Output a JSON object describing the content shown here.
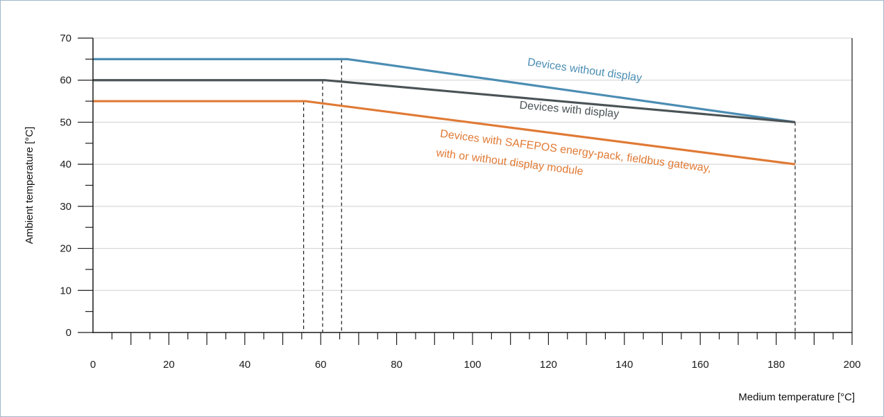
{
  "chart_data": {
    "type": "line",
    "title": "",
    "xlabel": "Medium temperature  [°C]",
    "ylabel": "Ambient temperature  [°C]",
    "xlim": [
      0,
      200
    ],
    "ylim": [
      0,
      70
    ],
    "x_ticks": [
      0,
      20,
      40,
      60,
      80,
      100,
      120,
      140,
      160,
      180,
      200
    ],
    "y_ticks": [
      0,
      10,
      20,
      30,
      40,
      50,
      60,
      70
    ],
    "grid": "horizontal",
    "legend": "inline labels",
    "series": [
      {
        "name": "Devices without display",
        "color": "#4b8db3",
        "x": [
          0,
          67,
          185
        ],
        "y": [
          65,
          65,
          50
        ]
      },
      {
        "name": "Devices with display",
        "color": "#4a5356",
        "x": [
          0,
          61,
          185
        ],
        "y": [
          60,
          60,
          50
        ]
      },
      {
        "name": "Devices with SAFEPOS energy-pack, fieldbus gateway,",
        "name_line2": "with or without display module",
        "color": "#e07a35",
        "x": [
          0,
          56,
          185
        ],
        "y": [
          55,
          55,
          40
        ]
      }
    ],
    "reference_lines_x": [
      {
        "x": 55.5,
        "y": 55
      },
      {
        "x": 60.5,
        "y": 60
      },
      {
        "x": 65.5,
        "y": 65
      },
      {
        "x": 185,
        "y": 50
      }
    ]
  }
}
